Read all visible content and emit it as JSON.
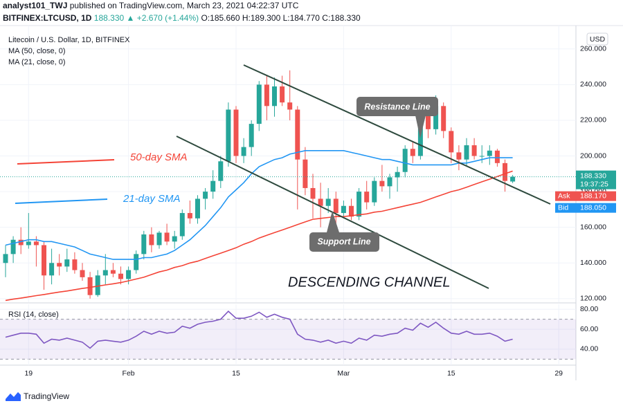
{
  "header": {
    "author": "analyst101_TWJ",
    "published": "published on TradingView.com, March 23, 2021 04:22:37 UTC",
    "symbol": "BITFINEX:LTCUSD, 1D",
    "last": "188.330",
    "change": "▲ +2.670 (+1.44%)",
    "ohlc": "O:185.660 H:189.300 L:184.770 C:188.330"
  },
  "price_labels": {
    "currency": "USD",
    "last": "188.330",
    "countdown": "19:37:25",
    "ask_label": "Ask",
    "ask": "188.170",
    "bid_label": "Bid",
    "bid": "188.050"
  },
  "annotations": {
    "sma50": "50-day SMA",
    "sma21": "21-day SMA",
    "resistance": "Resistance Line",
    "support": "Support Line",
    "channel": "DESCENDING CHANNEL"
  },
  "footer": "TradingView",
  "chart_data": {
    "type": "candlestick",
    "title": "Litecoin / U.S. Dollar, 1D, BITFINEX",
    "up_color": "#26a69a",
    "down_color": "#ef5350",
    "grid": true,
    "categories": [
      null,
      null,
      null,
      "19",
      null,
      null,
      null,
      null,
      null,
      null,
      null,
      null,
      null,
      null,
      null,
      null,
      "Feb",
      null,
      null,
      null,
      null,
      null,
      null,
      null,
      null,
      null,
      null,
      null,
      null,
      null,
      "15",
      null,
      null,
      null,
      null,
      null,
      null,
      null,
      null,
      null,
      null,
      null,
      null,
      null,
      "Mar",
      null,
      null,
      null,
      null,
      null,
      null,
      null,
      null,
      null,
      null,
      null,
      null,
      null,
      "15",
      null,
      null,
      null,
      null,
      null,
      null,
      null,
      null,
      null,
      null,
      null,
      null,
      null,
      "29",
      null,
      null
    ],
    "open": [
      140,
      145,
      153,
      150,
      152,
      150,
      133,
      140,
      138,
      142,
      136,
      132,
      122,
      133,
      136,
      134,
      131,
      136,
      145,
      156,
      150,
      157,
      152,
      155,
      168,
      165,
      176,
      180,
      186,
      197,
      226,
      200,
      205,
      218,
      240,
      228,
      239,
      230,
      226,
      198,
      182,
      176,
      172,
      176,
      168,
      172,
      166,
      180,
      174,
      186,
      183,
      188,
      191,
      204,
      200,
      224,
      215,
      228,
      214,
      202,
      198,
      206,
      200,
      200,
      203,
      196,
      185.66,
      null,
      null,
      null,
      null,
      null,
      null,
      null,
      null
    ],
    "high": [
      150,
      155,
      160,
      168,
      155,
      152,
      148,
      145,
      148,
      146,
      140,
      135,
      136,
      145,
      140,
      138,
      138,
      147,
      158,
      160,
      158,
      162,
      158,
      170,
      175,
      178,
      182,
      192,
      200,
      230,
      228,
      210,
      220,
      242,
      245,
      244,
      245,
      248,
      228,
      205,
      190,
      185,
      182,
      180,
      175,
      176,
      182,
      186,
      188,
      195,
      190,
      194,
      206,
      208,
      230,
      228,
      234,
      230,
      216,
      206,
      210,
      210,
      206,
      206,
      204,
      198,
      189.3,
      null,
      null,
      null,
      null,
      null,
      null,
      null,
      null
    ],
    "low": [
      132,
      140,
      145,
      148,
      138,
      125,
      128,
      133,
      135,
      134,
      130,
      120,
      121,
      128,
      132,
      128,
      128,
      134,
      142,
      146,
      148,
      150,
      148,
      153,
      162,
      162,
      170,
      176,
      182,
      194,
      196,
      196,
      200,
      214,
      220,
      222,
      228,
      220,
      170,
      178,
      165,
      160,
      168,
      155,
      165,
      164,
      164,
      170,
      172,
      180,
      176,
      180,
      188,
      196,
      198,
      210,
      212,
      210,
      196,
      192,
      194,
      198,
      196,
      195,
      194,
      180,
      184.77,
      null,
      null,
      null,
      null,
      null,
      null,
      null,
      null
    ],
    "close": [
      145,
      153,
      150,
      152,
      150,
      133,
      140,
      138,
      142,
      136,
      132,
      122,
      133,
      136,
      134,
      131,
      136,
      145,
      156,
      150,
      157,
      152,
      155,
      168,
      165,
      176,
      180,
      186,
      197,
      226,
      200,
      205,
      218,
      240,
      228,
      239,
      230,
      226,
      198,
      182,
      176,
      172,
      176,
      168,
      172,
      166,
      180,
      174,
      186,
      183,
      188,
      191,
      204,
      200,
      224,
      215,
      228,
      214,
      202,
      198,
      206,
      200,
      200,
      203,
      196,
      186,
      188.33,
      null,
      null,
      null,
      null,
      null,
      null,
      null,
      null
    ],
    "ylim": [
      118,
      270
    ],
    "yticks": [
      {
        "value": 120,
        "label": "120.000"
      },
      {
        "value": 140,
        "label": "140.000"
      },
      {
        "value": 160,
        "label": "160.000"
      },
      {
        "value": 180,
        "label": "180.000"
      },
      {
        "value": 200,
        "label": "200.000"
      },
      {
        "value": 220,
        "label": "220.000"
      },
      {
        "value": 240,
        "label": "240.000"
      },
      {
        "value": 260,
        "label": "260.000"
      }
    ],
    "series": [
      {
        "name": "MA (50, close, 0)",
        "color": "#f44336",
        "values": [
          119,
          119.7,
          120.3,
          121,
          121.7,
          122.3,
          123,
          123.7,
          124.3,
          125,
          125.7,
          126.3,
          127,
          127.7,
          128.3,
          129,
          130,
          131,
          132,
          133.5,
          135,
          136,
          137.5,
          138.5,
          140,
          141,
          142.5,
          144,
          145.5,
          147,
          148.5,
          150.5,
          152,
          154,
          155.5,
          157,
          158.5,
          160,
          161.5,
          163,
          164.5,
          165,
          165.5,
          166,
          166,
          166.5,
          167,
          167.5,
          168.5,
          169,
          170,
          171,
          172,
          173,
          174,
          175.5,
          177,
          178.5,
          180,
          181,
          182.5,
          184,
          185.5,
          187,
          188.5,
          190,
          191.5,
          null,
          null,
          null,
          null,
          null,
          null,
          null,
          null
        ]
      },
      {
        "name": "MA (21, close, 0)",
        "color": "#2196f3",
        "values": [
          150,
          151,
          152,
          153,
          153,
          152,
          152,
          151,
          150,
          149,
          147,
          145,
          144,
          143,
          142,
          142,
          142,
          142,
          143,
          143,
          144,
          145,
          147,
          150,
          153,
          157,
          161,
          166,
          171,
          177,
          181,
          185,
          190,
          194,
          196,
          198,
          199,
          201,
          202,
          203,
          203,
          203,
          203,
          203,
          203,
          202,
          201,
          200,
          199,
          198,
          198,
          197,
          196,
          195,
          195,
          195,
          195,
          195,
          195,
          196,
          196,
          197,
          198,
          199,
          199,
          199,
          199,
          null,
          null,
          null,
          null,
          null,
          null,
          null,
          null
        ]
      }
    ],
    "rsi": {
      "label": "RSI (14, close)",
      "color": "#7e57c2",
      "band": [
        30,
        70
      ],
      "ylim": [
        24,
        85
      ],
      "yticks": [
        {
          "value": 40,
          "label": "40.00"
        },
        {
          "value": 60,
          "label": "60.00"
        },
        {
          "value": 80,
          "label": "80.00"
        }
      ],
      "values": [
        52,
        54,
        56,
        56,
        55,
        46,
        50,
        49,
        51,
        49,
        47,
        41,
        48,
        49,
        48,
        47,
        49,
        53,
        58,
        55,
        58,
        56,
        57,
        63,
        61,
        65,
        67,
        68,
        70,
        78,
        71,
        71,
        73,
        77,
        72,
        75,
        72,
        70,
        55,
        50,
        49,
        47,
        49,
        46,
        48,
        46,
        51,
        49,
        54,
        53,
        55,
        56,
        61,
        59,
        66,
        62,
        67,
        61,
        56,
        55,
        58,
        55,
        55,
        56,
        53,
        48,
        50,
        null,
        null,
        null,
        null,
        null,
        null,
        null,
        null
      ]
    }
  }
}
